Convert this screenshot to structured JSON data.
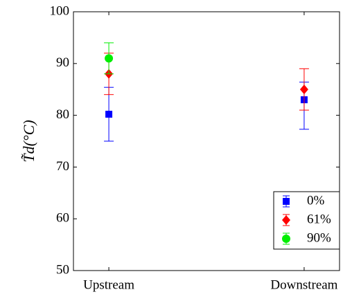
{
  "chart_data": {
    "type": "errorbar",
    "ylabel": "T̃d(°C)",
    "categories": [
      "Upstream",
      "Downstream"
    ],
    "ylim": [
      50,
      100
    ],
    "yticks": [
      50,
      60,
      70,
      80,
      90,
      100
    ],
    "legend": "lower right",
    "series": [
      {
        "name": "0%",
        "color": "#0000ff",
        "marker": "square",
        "values": [
          80.2,
          83
        ],
        "err_low": [
          5.2,
          5.7
        ],
        "err_high": [
          5.2,
          3.4
        ]
      },
      {
        "name": "61%",
        "color": "#ff0000",
        "marker": "diamond",
        "values": [
          88,
          85
        ],
        "err_low": [
          4,
          4
        ],
        "err_high": [
          4,
          4
        ]
      },
      {
        "name": "90%",
        "color": "#00ee00",
        "marker": "circle",
        "values": [
          91,
          null
        ],
        "err_low": [
          3,
          null
        ],
        "err_high": [
          3,
          null
        ]
      }
    ]
  }
}
